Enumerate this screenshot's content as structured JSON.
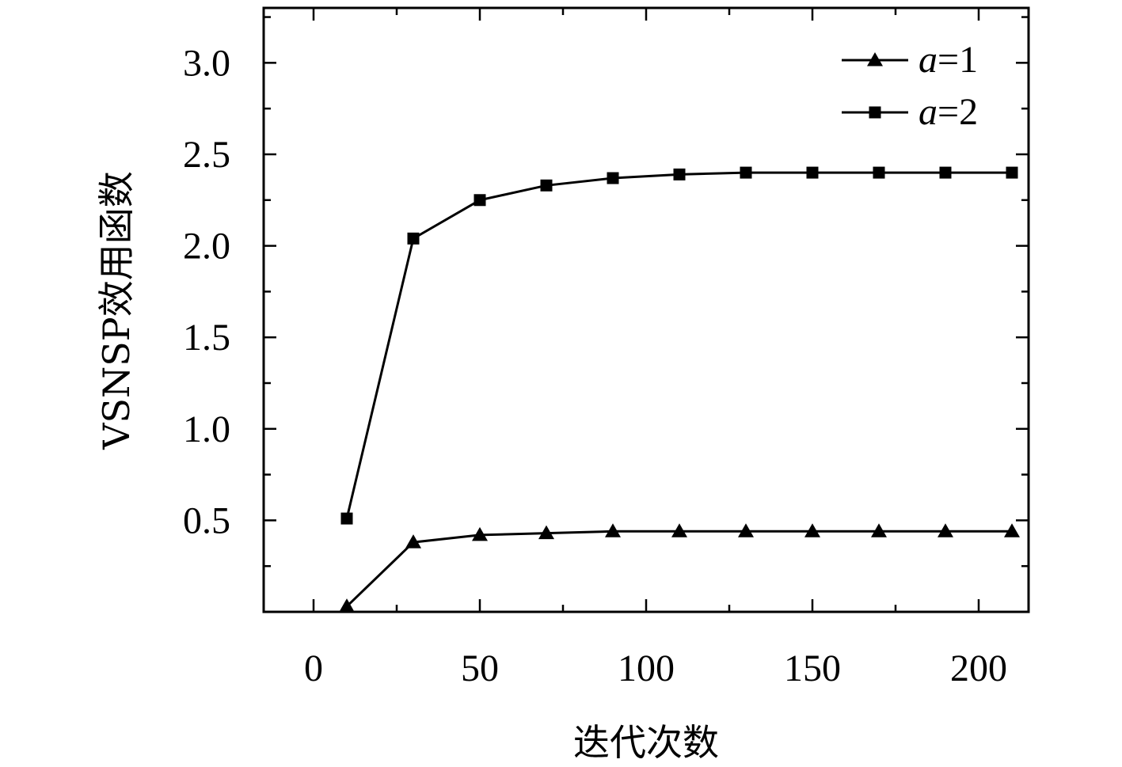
{
  "chart_data": {
    "type": "line",
    "xlabel": "迭代次数",
    "ylabel": "VSNSP效用函数",
    "xlim": [
      -15,
      215
    ],
    "ylim": [
      0,
      3.3
    ],
    "x_ticks": [
      0,
      50,
      100,
      150,
      200
    ],
    "x_tick_labels": [
      "0",
      "50",
      "100",
      "150",
      "200"
    ],
    "x_minor_ticks": [
      25,
      75,
      125,
      175
    ],
    "y_ticks": [
      0.5,
      1.0,
      1.5,
      2.0,
      2.5,
      3.0
    ],
    "y_tick_labels": [
      "0.5",
      "1.0",
      "1.5",
      "2.0",
      "2.5",
      "3.0"
    ],
    "y_minor_ticks": [
      0.25,
      0.75,
      1.25,
      1.75,
      2.25,
      2.75,
      3.25
    ],
    "grid": false,
    "legend_position": "top-right",
    "series": [
      {
        "name_var": "a",
        "name_rest": "=1",
        "marker": "triangle",
        "x": [
          10,
          30,
          50,
          70,
          90,
          110,
          130,
          150,
          170,
          190,
          210
        ],
        "y": [
          0.03,
          0.38,
          0.42,
          0.43,
          0.44,
          0.44,
          0.44,
          0.44,
          0.44,
          0.44,
          0.44
        ]
      },
      {
        "name_var": "a",
        "name_rest": "=2",
        "marker": "square",
        "x": [
          10,
          30,
          50,
          70,
          90,
          110,
          130,
          150,
          170,
          190,
          210
        ],
        "y": [
          0.51,
          2.04,
          2.25,
          2.33,
          2.37,
          2.39,
          2.4,
          2.4,
          2.4,
          2.4,
          2.4
        ]
      }
    ]
  }
}
